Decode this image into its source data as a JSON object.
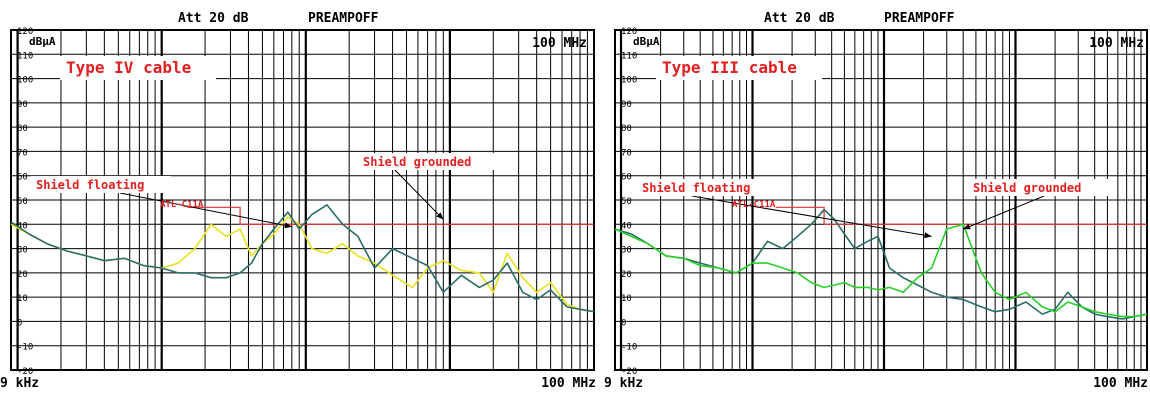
{
  "chart_data": [
    {
      "type": "line",
      "header": {
        "att": "Att 20 dB",
        "preamp": "PREAMPOFF"
      },
      "unit_label": "dBμA",
      "corner_label": "100 MHz",
      "cable_label": "Type IV cable",
      "x_start_label": "9 kHz",
      "x_end_label": "100 MHz",
      "xlim_hz": [
        9000,
        100000000
      ],
      "x_scale": "log",
      "ylim": [
        -20,
        120
      ],
      "y_ticks": [
        120,
        110,
        100,
        90,
        80,
        70,
        60,
        50,
        40,
        30,
        20,
        10,
        0,
        -10,
        -20
      ],
      "grid": true,
      "limit_line": {
        "name": "ATL-C11A",
        "color": "#e03030",
        "points": [
          [
            150000,
            47
          ],
          [
            350000,
            47
          ],
          [
            350000,
            40
          ],
          [
            100000000,
            40
          ]
        ]
      },
      "annotations": [
        {
          "text": "Shield floating",
          "color": "#e02020"
        },
        {
          "text": "Shield grounded",
          "color": "#e02020"
        }
      ],
      "series": [
        {
          "color": "#e8e020",
          "x": [
            9000,
            12000,
            16000,
            22000,
            30000,
            40000,
            55000,
            75000,
            100000,
            130000,
            170000,
            220000,
            280000,
            350000,
            420000,
            500000,
            600000,
            750000,
            900000,
            1100000,
            1400000,
            1800000,
            2300000,
            3000000,
            4000000,
            5500000,
            7000000,
            9000000,
            12000000,
            16000000,
            20000000,
            25000000,
            32000000,
            40000000,
            50000000,
            65000000,
            80000000,
            100000000
          ],
          "values": [
            40,
            36,
            32,
            29,
            27,
            25,
            26,
            23,
            22,
            24,
            30,
            40,
            35,
            38,
            27,
            32,
            36,
            43,
            40,
            30,
            28,
            32,
            27,
            24,
            19,
            14,
            22,
            25,
            21,
            20,
            12,
            28,
            18,
            12,
            16,
            7,
            5,
            4
          ]
        },
        {
          "color": "#2a6e66",
          "x": [
            9000,
            12000,
            16000,
            22000,
            30000,
            40000,
            55000,
            75000,
            100000,
            130000,
            170000,
            220000,
            280000,
            350000,
            420000,
            500000,
            600000,
            750000,
            900000,
            1100000,
            1400000,
            1800000,
            2300000,
            3000000,
            4000000,
            5500000,
            7000000,
            9000000,
            12000000,
            16000000,
            20000000,
            25000000,
            32000000,
            40000000,
            50000000,
            65000000,
            80000000,
            100000000
          ],
          "values": [
            41,
            36,
            32,
            29,
            27,
            25,
            26,
            23,
            22,
            20,
            20,
            18,
            18,
            20,
            24,
            32,
            38,
            45,
            38,
            44,
            48,
            40,
            35,
            22,
            30,
            26,
            23,
            12,
            19,
            14,
            17,
            24,
            12,
            9,
            13,
            6,
            5,
            4
          ]
        }
      ]
    },
    {
      "type": "line",
      "header": {
        "att": "Att 20 dB",
        "preamp": "PREAMPOFF"
      },
      "unit_label": "dBμA",
      "corner_label": "100 MHz",
      "cable_label": "Type III cable",
      "x_start_label": "9 kHz",
      "x_end_label": "100 MHz",
      "xlim_hz": [
        9000,
        100000000
      ],
      "x_scale": "log",
      "ylim": [
        -20,
        120
      ],
      "y_ticks": [
        120,
        110,
        100,
        90,
        80,
        70,
        60,
        50,
        40,
        30,
        20,
        10,
        0,
        -10,
        -20
      ],
      "grid": true,
      "limit_line": {
        "name": "ATL-C11A",
        "color": "#e03030",
        "points": [
          [
            150000,
            47
          ],
          [
            350000,
            47
          ],
          [
            350000,
            40
          ],
          [
            100000000,
            40
          ]
        ]
      },
      "annotations": [
        {
          "text": "Shield floating",
          "color": "#e02020"
        },
        {
          "text": "Shield grounded",
          "color": "#e02020"
        }
      ],
      "series": [
        {
          "color": "#2a6e66",
          "x": [
            9000,
            12000,
            16000,
            22000,
            30000,
            40000,
            55000,
            75000,
            100000,
            130000,
            170000,
            220000,
            280000,
            350000,
            420000,
            500000,
            600000,
            750000,
            900000,
            1100000,
            1400000,
            1800000,
            2300000,
            3000000,
            4000000,
            5500000,
            7000000,
            9000000,
            12000000,
            16000000,
            20000000,
            25000000,
            32000000,
            40000000,
            50000000,
            65000000,
            80000000,
            100000000
          ],
          "values": [
            38,
            36,
            32,
            27,
            26,
            24,
            22,
            20,
            24,
            33,
            30,
            35,
            40,
            46,
            42,
            36,
            30,
            33,
            35,
            22,
            18,
            15,
            12,
            10,
            9,
            6,
            4,
            5,
            8,
            3,
            5,
            12,
            6,
            3,
            2,
            1,
            2,
            3
          ]
        },
        {
          "color": "#28d028",
          "x": [
            9000,
            12000,
            16000,
            22000,
            30000,
            40000,
            55000,
            75000,
            100000,
            130000,
            170000,
            220000,
            280000,
            350000,
            420000,
            500000,
            600000,
            750000,
            900000,
            1100000,
            1400000,
            1800000,
            2300000,
            3000000,
            4000000,
            5500000,
            7000000,
            9000000,
            12000000,
            16000000,
            20000000,
            25000000,
            32000000,
            40000000,
            50000000,
            65000000,
            80000000,
            100000000
          ],
          "values": [
            38,
            35,
            32,
            27,
            26,
            23,
            22,
            20,
            24,
            24,
            22,
            20,
            16,
            14,
            15,
            16,
            14,
            14,
            13,
            14,
            12,
            18,
            22,
            38,
            40,
            20,
            12,
            9,
            12,
            6,
            4,
            8,
            6,
            4,
            3,
            2,
            2,
            3
          ]
        }
      ]
    }
  ]
}
